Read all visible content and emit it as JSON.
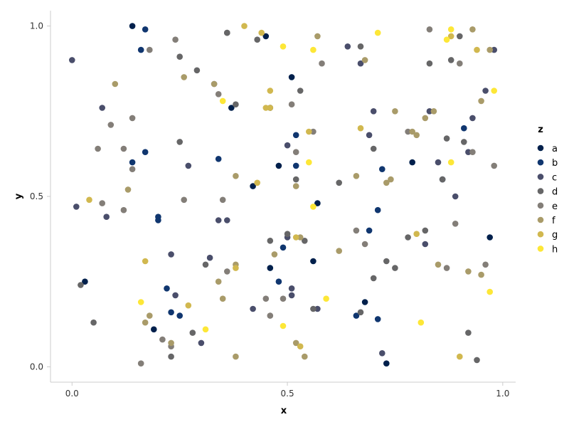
{
  "chart_data": {
    "type": "scatter",
    "xlabel": "x",
    "ylabel": "y",
    "xlim": [
      -0.05,
      1.03
    ],
    "ylim": [
      -0.045,
      1.045
    ],
    "xticks": [
      0.0,
      0.5,
      1.0
    ],
    "xtick_labels": [
      "0.0",
      "0.5",
      "1.0"
    ],
    "yticks": [
      0.0,
      0.5,
      1.0
    ],
    "ytick_labels": [
      "0.0",
      "0.5",
      "1.0"
    ],
    "grid": false,
    "legend": {
      "title": "z",
      "placement": "right"
    },
    "colors": {
      "a": "#00204c",
      "b": "#10366f",
      "c": "#4a4e6b",
      "d": "#666667",
      "e": "#837e78",
      "f": "#a99b69",
      "g": "#d1b84f",
      "h": "#fde737"
    },
    "series": [
      {
        "name": "a",
        "points": [
          [
            0.14,
            1.0
          ],
          [
            0.45,
            0.97
          ],
          [
            0.51,
            0.85
          ],
          [
            0.37,
            0.76
          ],
          [
            0.46,
            0.76
          ],
          [
            0.48,
            0.59
          ],
          [
            0.42,
            0.53
          ],
          [
            0.57,
            0.48
          ],
          [
            0.86,
            0.55
          ],
          [
            0.79,
            0.6
          ],
          [
            0.97,
            0.38
          ],
          [
            0.56,
            0.31
          ],
          [
            0.46,
            0.29
          ],
          [
            0.03,
            0.25
          ],
          [
            0.19,
            0.11
          ],
          [
            0.68,
            0.19
          ],
          [
            0.73,
            0.01
          ]
        ]
      },
      {
        "name": "b",
        "points": [
          [
            0.17,
            0.99
          ],
          [
            0.16,
            0.93
          ],
          [
            0.17,
            0.63
          ],
          [
            0.14,
            0.6
          ],
          [
            0.34,
            0.61
          ],
          [
            0.52,
            0.68
          ],
          [
            0.52,
            0.59
          ],
          [
            0.72,
            0.58
          ],
          [
            0.71,
            0.46
          ],
          [
            0.69,
            0.4
          ],
          [
            0.49,
            0.35
          ],
          [
            0.48,
            0.25
          ],
          [
            0.22,
            0.23
          ],
          [
            0.23,
            0.16
          ],
          [
            0.25,
            0.15
          ],
          [
            0.2,
            0.43
          ],
          [
            0.66,
            0.15
          ],
          [
            0.71,
            0.14
          ],
          [
            0.91,
            0.7
          ],
          [
            0.2,
            0.44
          ]
        ]
      },
      {
        "name": "c",
        "points": [
          [
            0.0,
            0.9
          ],
          [
            0.07,
            0.76
          ],
          [
            0.01,
            0.47
          ],
          [
            0.08,
            0.44
          ],
          [
            0.27,
            0.59
          ],
          [
            0.23,
            0.33
          ],
          [
            0.24,
            0.21
          ],
          [
            0.32,
            0.32
          ],
          [
            0.3,
            0.07
          ],
          [
            0.34,
            0.43
          ],
          [
            0.36,
            0.43
          ],
          [
            0.42,
            0.17
          ],
          [
            0.5,
            0.38
          ],
          [
            0.51,
            0.23
          ],
          [
            0.51,
            0.21
          ],
          [
            0.57,
            0.17
          ],
          [
            0.64,
            0.94
          ],
          [
            0.67,
            0.89
          ],
          [
            0.69,
            0.68
          ],
          [
            0.7,
            0.75
          ],
          [
            0.72,
            0.04
          ],
          [
            0.82,
            0.36
          ],
          [
            0.83,
            0.75
          ],
          [
            0.85,
            0.6
          ],
          [
            0.89,
            0.5
          ],
          [
            0.92,
            0.63
          ],
          [
            0.93,
            0.73
          ],
          [
            0.98,
            0.93
          ],
          [
            0.96,
            0.81
          ],
          [
            0.33,
            0.83
          ],
          [
            0.5,
            0.65
          ]
        ]
      },
      {
        "name": "d",
        "points": [
          [
            0.25,
            0.91
          ],
          [
            0.29,
            0.87
          ],
          [
            0.36,
            0.98
          ],
          [
            0.43,
            0.96
          ],
          [
            0.38,
            0.77
          ],
          [
            0.25,
            0.66
          ],
          [
            0.53,
            0.81
          ],
          [
            0.5,
            0.39
          ],
          [
            0.54,
            0.37
          ],
          [
            0.52,
            0.55
          ],
          [
            0.46,
            0.37
          ],
          [
            0.56,
            0.17
          ],
          [
            0.62,
            0.54
          ],
          [
            0.67,
            0.94
          ],
          [
            0.7,
            0.64
          ],
          [
            0.7,
            0.26
          ],
          [
            0.73,
            0.31
          ],
          [
            0.75,
            0.29
          ],
          [
            0.78,
            0.38
          ],
          [
            0.82,
            0.4
          ],
          [
            0.83,
            0.89
          ],
          [
            0.87,
            0.67
          ],
          [
            0.88,
            0.9
          ],
          [
            0.9,
            0.97
          ],
          [
            0.91,
            0.66
          ],
          [
            0.92,
            0.1
          ],
          [
            0.94,
            0.02
          ],
          [
            0.23,
            0.03
          ],
          [
            0.28,
            0.1
          ],
          [
            0.31,
            0.3
          ],
          [
            0.05,
            0.13
          ],
          [
            0.02,
            0.24
          ],
          [
            0.67,
            0.16
          ],
          [
            0.86,
            0.55
          ],
          [
            0.36,
            0.98
          ]
        ]
      },
      {
        "name": "e",
        "points": [
          [
            0.18,
            0.93
          ],
          [
            0.24,
            0.96
          ],
          [
            0.34,
            0.8
          ],
          [
            0.07,
            0.48
          ],
          [
            0.06,
            0.64
          ],
          [
            0.12,
            0.64
          ],
          [
            0.14,
            0.58
          ],
          [
            0.09,
            0.71
          ],
          [
            0.14,
            0.73
          ],
          [
            0.12,
            0.46
          ],
          [
            0.26,
            0.49
          ],
          [
            0.35,
            0.49
          ],
          [
            0.36,
            0.28
          ],
          [
            0.45,
            0.2
          ],
          [
            0.46,
            0.15
          ],
          [
            0.49,
            0.2
          ],
          [
            0.52,
            0.63
          ],
          [
            0.51,
            0.77
          ],
          [
            0.56,
            0.69
          ],
          [
            0.58,
            0.89
          ],
          [
            0.66,
            0.4
          ],
          [
            0.68,
            0.36
          ],
          [
            0.83,
            0.99
          ],
          [
            0.87,
            0.29
          ],
          [
            0.89,
            0.42
          ],
          [
            0.9,
            0.89
          ],
          [
            0.93,
            0.63
          ],
          [
            0.96,
            0.3
          ],
          [
            0.98,
            0.59
          ],
          [
            0.16,
            0.01
          ],
          [
            0.21,
            0.08
          ],
          [
            0.23,
            0.06
          ],
          [
            0.78,
            0.69
          ]
        ]
      },
      {
        "name": "f",
        "points": [
          [
            0.1,
            0.83
          ],
          [
            0.13,
            0.52
          ],
          [
            0.26,
            0.85
          ],
          [
            0.33,
            0.83
          ],
          [
            0.38,
            0.56
          ],
          [
            0.35,
            0.2
          ],
          [
            0.34,
            0.25
          ],
          [
            0.38,
            0.3
          ],
          [
            0.47,
            0.33
          ],
          [
            0.52,
            0.53
          ],
          [
            0.53,
            0.38
          ],
          [
            0.52,
            0.07
          ],
          [
            0.54,
            0.03
          ],
          [
            0.57,
            0.97
          ],
          [
            0.62,
            0.34
          ],
          [
            0.66,
            0.56
          ],
          [
            0.68,
            0.9
          ],
          [
            0.73,
            0.54
          ],
          [
            0.74,
            0.55
          ],
          [
            0.75,
            0.75
          ],
          [
            0.79,
            0.69
          ],
          [
            0.8,
            0.68
          ],
          [
            0.82,
            0.73
          ],
          [
            0.84,
            0.75
          ],
          [
            0.85,
            0.3
          ],
          [
            0.93,
            0.99
          ],
          [
            0.95,
            0.78
          ],
          [
            0.97,
            0.93
          ],
          [
            0.95,
            0.27
          ],
          [
            0.23,
            0.07
          ],
          [
            0.38,
            0.03
          ],
          [
            0.18,
            0.15
          ],
          [
            0.17,
            0.13
          ],
          [
            0.92,
            0.28
          ]
        ]
      },
      {
        "name": "g",
        "points": [
          [
            0.04,
            0.49
          ],
          [
            0.17,
            0.31
          ],
          [
            0.27,
            0.18
          ],
          [
            0.4,
            1.0
          ],
          [
            0.44,
            0.98
          ],
          [
            0.46,
            0.81
          ],
          [
            0.46,
            0.76
          ],
          [
            0.55,
            0.69
          ],
          [
            0.67,
            0.7
          ],
          [
            0.8,
            0.39
          ],
          [
            0.9,
            0.03
          ],
          [
            0.88,
            0.97
          ],
          [
            0.94,
            0.93
          ],
          [
            0.43,
            0.54
          ],
          [
            0.52,
            0.38
          ],
          [
            0.38,
            0.29
          ],
          [
            0.45,
            0.76
          ],
          [
            0.53,
            0.06
          ]
        ]
      },
      {
        "name": "h",
        "points": [
          [
            0.16,
            0.19
          ],
          [
            0.31,
            0.11
          ],
          [
            0.35,
            0.78
          ],
          [
            0.49,
            0.94
          ],
          [
            0.49,
            0.12
          ],
          [
            0.56,
            0.93
          ],
          [
            0.55,
            0.6
          ],
          [
            0.56,
            0.47
          ],
          [
            0.59,
            0.2
          ],
          [
            0.71,
            0.98
          ],
          [
            0.81,
            0.13
          ],
          [
            0.87,
            0.96
          ],
          [
            0.88,
            0.99
          ],
          [
            0.88,
            0.6
          ],
          [
            0.97,
            0.22
          ],
          [
            0.98,
            0.81
          ]
        ]
      }
    ]
  }
}
